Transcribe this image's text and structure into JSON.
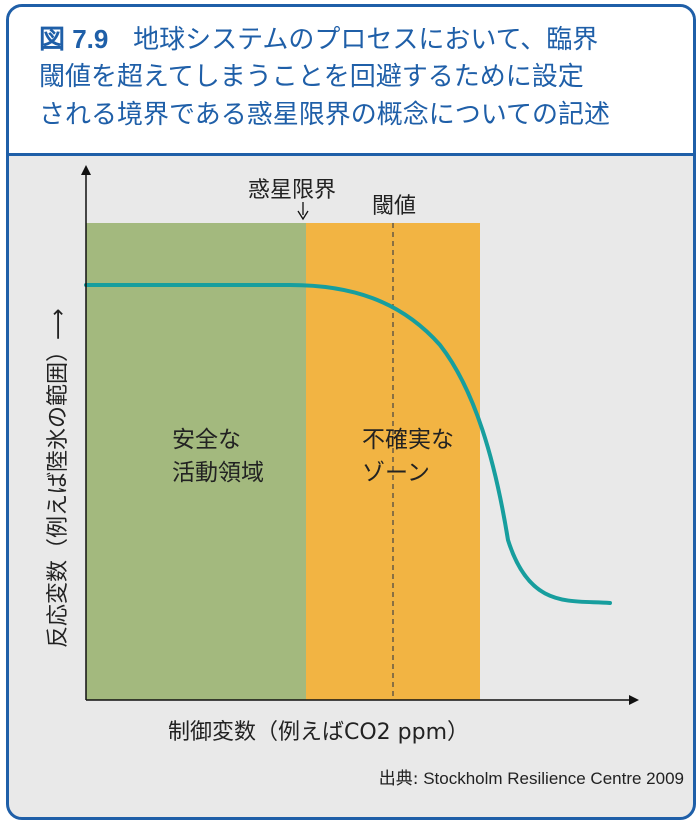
{
  "header": {
    "figure_label": "図 7.9",
    "title_line1": "地球システムのプロセスにおいて、臨界",
    "title_line2": "閾値を超えてしまうことを回避するために設定",
    "title_line3": "される境界である惑星限界の概念についての記述"
  },
  "diagram": {
    "markers": {
      "planetary_boundary": "惑星限界",
      "threshold": "閾値"
    },
    "zones": {
      "safe_line1": "安全な",
      "safe_line2": "活動領域",
      "uncertain_line1": "不確実な",
      "uncertain_line2": "ゾーン"
    },
    "x_axis_label": "制御変数（例えばCO2 ppm）",
    "y_axis_label": "反応変数（例えば陸氷の範囲）⟶",
    "colors": {
      "safe_zone": "#a3b97e",
      "uncertain_zone": "#f2b443",
      "curve": "#179e9e",
      "frame": "#1f5fa8"
    }
  },
  "footer": {
    "source_label": "出典:",
    "source_text": "Stockholm Resilience Centre 2009"
  }
}
